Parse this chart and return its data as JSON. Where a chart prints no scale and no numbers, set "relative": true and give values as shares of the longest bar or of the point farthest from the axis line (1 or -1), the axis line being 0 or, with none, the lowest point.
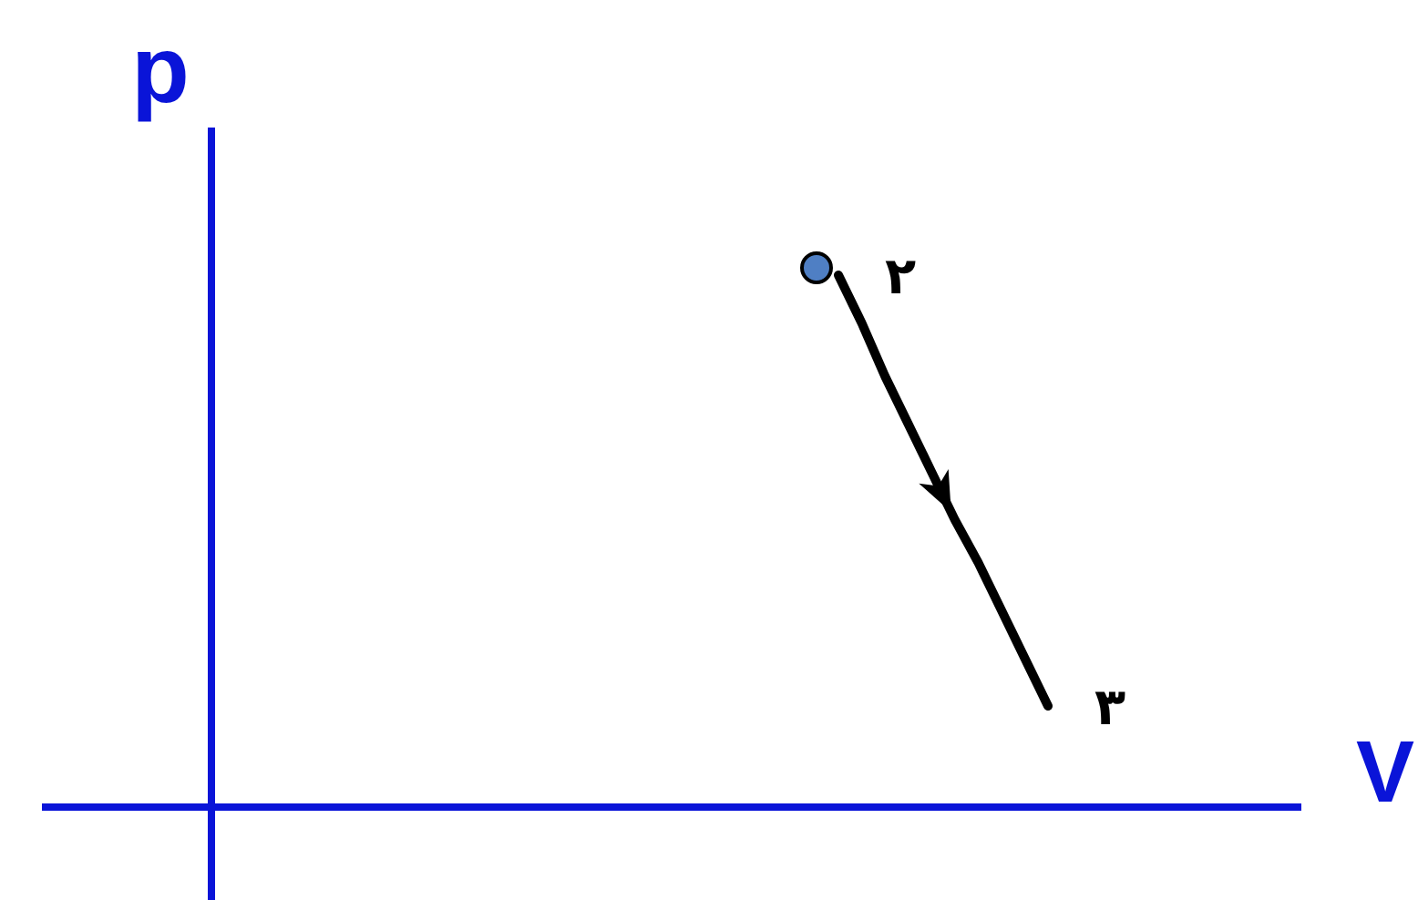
{
  "chart_data": {
    "type": "line",
    "relative": true,
    "xlabel": "V",
    "categories": [
      null,
      null,
      null,
      null,
      null,
      null,
      null,
      null,
      null,
      null
    ],
    "series": [
      {
        "type": "line",
        "color": "#000000",
        "values": [
          1,
          0.91,
          0.81,
          0.72,
          0.63,
          0.54,
          0.46,
          0.37,
          0.28,
          0.19
        ]
      }
    ],
    "annotations": [
      "۲",
      "۳",
      "p"
    ]
  }
}
